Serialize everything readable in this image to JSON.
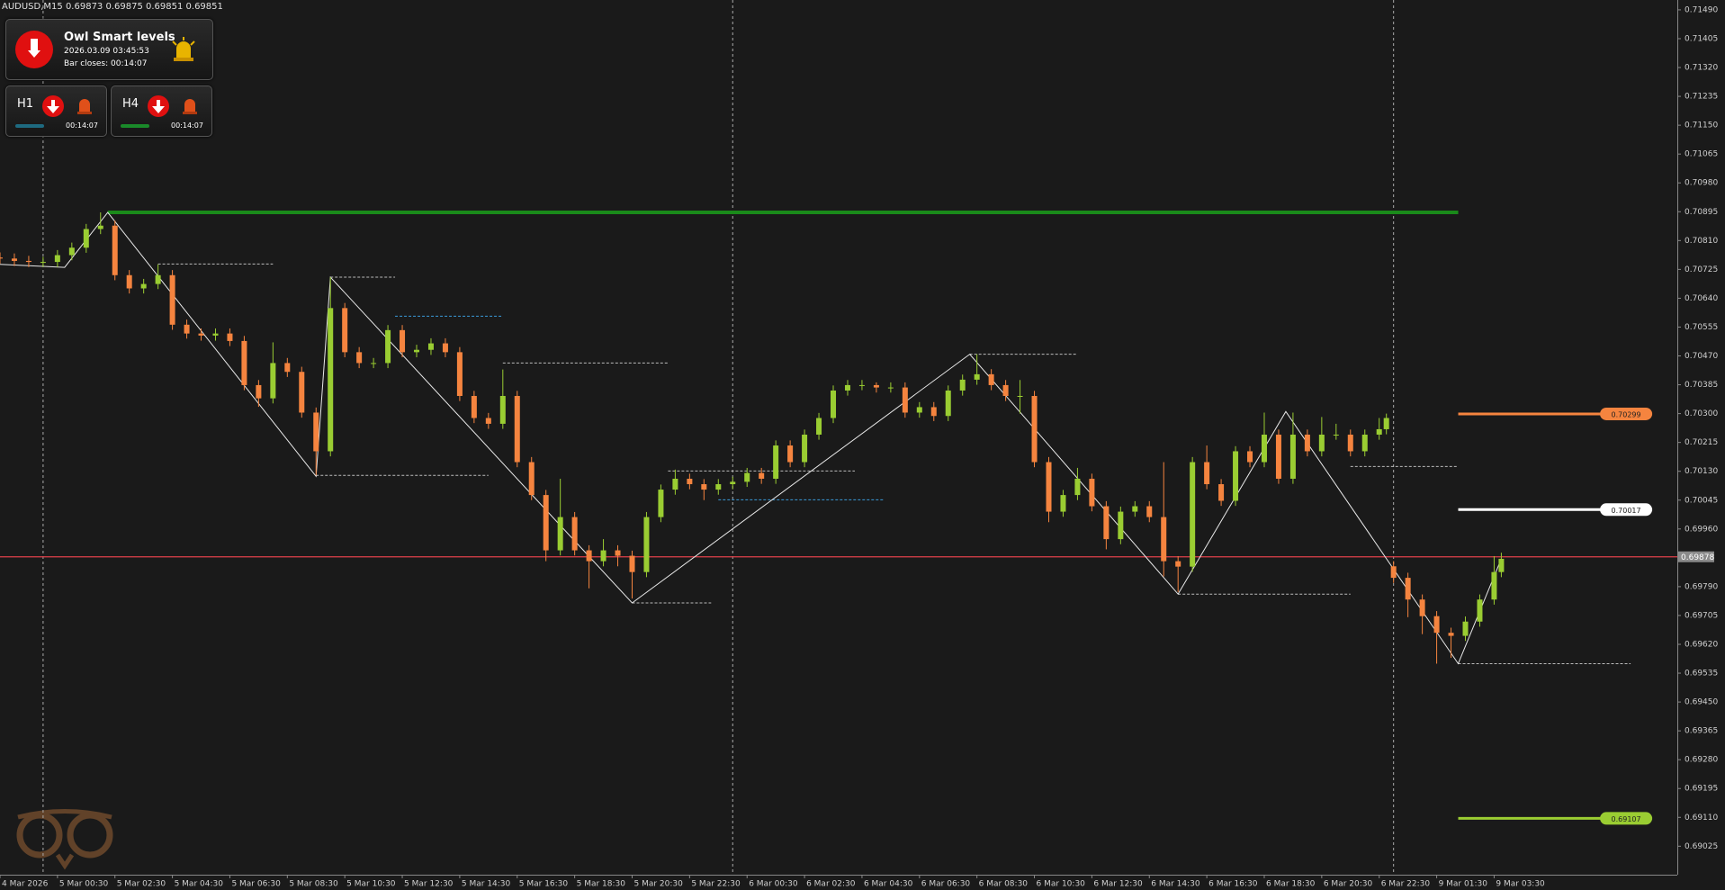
{
  "chart_data": {
    "type": "candlestick",
    "header": "AUDUSD,M15  0.69873 0.69875 0.69851 0.69851",
    "up_color": "#9acd32",
    "down_color": "#f5843f",
    "xlim": [
      0,
      233.5
    ],
    "ylim": [
      0.68941,
      0.71519
    ],
    "xticks": [
      {
        "value": 0,
        "label": "4 Mar 2026"
      },
      {
        "value": 8,
        "label": "5 Mar 00:30"
      },
      {
        "value": 16,
        "label": "5 Mar 02:30"
      },
      {
        "value": 24,
        "label": "5 Mar 04:30"
      },
      {
        "value": 32,
        "label": "5 Mar 06:30"
      },
      {
        "value": 40,
        "label": "5 Mar 08:30"
      },
      {
        "value": 48,
        "label": "5 Mar 10:30"
      },
      {
        "value": 56,
        "label": "5 Mar 12:30"
      },
      {
        "value": 64,
        "label": "5 Mar 14:30"
      },
      {
        "value": 72,
        "label": "5 Mar 16:30"
      },
      {
        "value": 80,
        "label": "5 Mar 18:30"
      },
      {
        "value": 88,
        "label": "5 Mar 20:30"
      },
      {
        "value": 96,
        "label": "5 Mar 22:30"
      },
      {
        "value": 104,
        "label": "6 Mar 00:30"
      },
      {
        "value": 112,
        "label": "6 Mar 02:30"
      },
      {
        "value": 120,
        "label": "6 Mar 04:30"
      },
      {
        "value": 128,
        "label": "6 Mar 06:30"
      },
      {
        "value": 136,
        "label": "6 Mar 08:30"
      },
      {
        "value": 144,
        "label": "6 Mar 10:30"
      },
      {
        "value": 152,
        "label": "6 Mar 12:30"
      },
      {
        "value": 160,
        "label": "6 Mar 14:30"
      },
      {
        "value": 168,
        "label": "6 Mar 16:30"
      },
      {
        "value": 176,
        "label": "6 Mar 18:30"
      },
      {
        "value": 184,
        "label": "6 Mar 20:30"
      },
      {
        "value": 192,
        "label": "6 Mar 22:30"
      },
      {
        "value": 200,
        "label": "9 Mar 01:30"
      },
      {
        "value": 208,
        "label": "9 Mar 03:30"
      }
    ],
    "yticks": [
      {
        "value": 0.7149,
        "label": "0.71490"
      },
      0.71405,
      {
        "value": 0.7132,
        "label": "0.71320"
      },
      0.71235,
      {
        "value": 0.7115,
        "label": "0.71150"
      },
      0.71065,
      {
        "value": 0.7098,
        "label": "0.70980"
      },
      0.70895,
      {
        "value": 0.7081,
        "label": "0.70810"
      },
      0.70725,
      {
        "value": 0.7064,
        "label": "0.70640"
      },
      0.70555,
      {
        "value": 0.7047,
        "label": "0.70470"
      },
      0.70385,
      {
        "value": 0.703,
        "label": "0.70300"
      },
      0.70215,
      {
        "value": 0.7013,
        "label": "0.70130"
      },
      0.70045,
      {
        "value": 0.6996,
        "label": "0.69960"
      },
      {
        "value": 0.6979,
        "label": "0.69790"
      },
      0.69705,
      {
        "value": 0.6962,
        "label": "0.69620"
      },
      0.69535,
      {
        "value": 0.6945,
        "label": "0.69450"
      },
      0.69365,
      {
        "value": 0.6928,
        "label": "0.69280"
      },
      0.69195,
      {
        "value": 0.6911,
        "label": "0.69110"
      },
      0.69025
    ],
    "x": [
      0,
      2,
      4,
      6,
      8,
      10,
      12,
      14,
      16,
      18,
      20,
      22,
      24,
      26,
      28,
      30,
      32,
      34,
      36,
      38,
      40,
      42,
      44,
      46,
      48,
      50,
      52,
      54,
      56,
      58,
      60,
      62,
      64,
      66,
      68,
      70,
      72,
      74,
      76,
      78,
      80,
      82,
      84,
      86,
      88,
      90,
      92,
      94,
      96,
      98,
      100,
      102,
      104,
      106,
      108,
      110,
      112,
      114,
      116,
      118,
      120,
      122,
      124,
      126,
      128,
      130,
      132,
      134,
      136,
      138,
      140,
      142,
      144,
      146,
      148,
      150,
      152,
      154,
      156,
      158,
      160,
      162,
      164,
      166,
      168,
      170,
      172,
      174,
      176,
      178,
      180,
      182,
      184,
      186,
      188,
      190,
      192,
      193,
      194,
      196,
      198,
      200,
      202,
      204,
      206,
      208,
      209
    ],
    "ohlc": [
      [
        0.7076,
        0.70775,
        0.70742,
        0.70757
      ],
      [
        0.70757,
        0.70772,
        0.70735,
        0.7075
      ],
      [
        0.7075,
        0.70765,
        0.70732,
        0.70747
      ],
      [
        0.70747,
        0.70762,
        0.70732,
        0.70747
      ],
      [
        0.70747,
        0.70782,
        0.70732,
        0.70767
      ],
      [
        0.70767,
        0.70804,
        0.70752,
        0.70789
      ],
      [
        0.70789,
        0.70859,
        0.70774,
        0.70844
      ],
      [
        0.70844,
        0.70893,
        0.70829,
        0.70854
      ],
      [
        0.70854,
        0.70869,
        0.70693,
        0.70708
      ],
      [
        0.70708,
        0.70723,
        0.70654,
        0.70669
      ],
      [
        0.70669,
        0.70697,
        0.70654,
        0.70682
      ],
      [
        0.70682,
        0.7074,
        0.70667,
        0.70708
      ],
      [
        0.70708,
        0.70723,
        0.70547,
        0.70562
      ],
      [
        0.70562,
        0.70577,
        0.70521,
        0.70536
      ],
      [
        0.70536,
        0.70551,
        0.70515,
        0.7053
      ],
      [
        0.7053,
        0.70551,
        0.70515,
        0.70536
      ],
      [
        0.70536,
        0.70551,
        0.70499,
        0.70514
      ],
      [
        0.70514,
        0.70529,
        0.70369,
        0.70384
      ],
      [
        0.70384,
        0.70399,
        0.7032,
        0.70345
      ],
      [
        0.70345,
        0.7051,
        0.7033,
        0.70449
      ],
      [
        0.70449,
        0.70464,
        0.70408,
        0.70423
      ],
      [
        0.70423,
        0.70438,
        0.70288,
        0.70303
      ],
      [
        0.70303,
        0.70318,
        0.70118,
        0.70189
      ],
      [
        0.70189,
        0.70702,
        0.70174,
        0.70611
      ],
      [
        0.70611,
        0.70626,
        0.70466,
        0.70481
      ],
      [
        0.70481,
        0.70496,
        0.70434,
        0.70449
      ],
      [
        0.70449,
        0.70464,
        0.70434,
        0.70449
      ],
      [
        0.70449,
        0.70561,
        0.70434,
        0.70546
      ],
      [
        0.70546,
        0.70561,
        0.70466,
        0.70481
      ],
      [
        0.70481,
        0.70503,
        0.70466,
        0.70488
      ],
      [
        0.70488,
        0.70522,
        0.70473,
        0.70507
      ],
      [
        0.70507,
        0.70522,
        0.70466,
        0.70481
      ],
      [
        0.70481,
        0.70496,
        0.70337,
        0.70352
      ],
      [
        0.70352,
        0.70367,
        0.70272,
        0.70287
      ],
      [
        0.70287,
        0.70302,
        0.70255,
        0.7027
      ],
      [
        0.7027,
        0.7043,
        0.70255,
        0.70352
      ],
      [
        0.70352,
        0.70367,
        0.70142,
        0.70157
      ],
      [
        0.70157,
        0.70172,
        0.70045,
        0.7006
      ],
      [
        0.7006,
        0.70075,
        0.69865,
        0.69897
      ],
      [
        0.69897,
        0.70108,
        0.69882,
        0.69995
      ],
      [
        0.69995,
        0.7001,
        0.69882,
        0.69897
      ],
      [
        0.69897,
        0.69912,
        0.69785,
        0.69865
      ],
      [
        0.69865,
        0.6993,
        0.6985,
        0.69897
      ],
      [
        0.69897,
        0.69912,
        0.6985,
        0.69881
      ],
      [
        0.69881,
        0.69896,
        0.69755,
        0.69833
      ],
      [
        0.69833,
        0.7001,
        0.69818,
        0.69995
      ],
      [
        0.69995,
        0.70091,
        0.6998,
        0.70076
      ],
      [
        0.70076,
        0.70135,
        0.70061,
        0.70108
      ],
      [
        0.70108,
        0.70123,
        0.70077,
        0.70092
      ],
      [
        0.70092,
        0.70107,
        0.70045,
        0.70076
      ],
      [
        0.70076,
        0.70107,
        0.70061,
        0.70092
      ],
      [
        0.70092,
        0.70114,
        0.70077,
        0.70099
      ],
      [
        0.70099,
        0.7014,
        0.70084,
        0.70125
      ],
      [
        0.70125,
        0.7014,
        0.70093,
        0.70108
      ],
      [
        0.70108,
        0.70221,
        0.70093,
        0.70206
      ],
      [
        0.70206,
        0.70221,
        0.70142,
        0.70157
      ],
      [
        0.70157,
        0.70253,
        0.70142,
        0.70238
      ],
      [
        0.70238,
        0.70302,
        0.70223,
        0.70287
      ],
      [
        0.70287,
        0.70383,
        0.70272,
        0.70368
      ],
      [
        0.70368,
        0.70399,
        0.70353,
        0.70384
      ],
      [
        0.70384,
        0.70399,
        0.70369,
        0.70384
      ],
      [
        0.70384,
        0.70392,
        0.70362,
        0.70377
      ],
      [
        0.70377,
        0.70392,
        0.70362,
        0.70377
      ],
      [
        0.70377,
        0.70392,
        0.70288,
        0.70303
      ],
      [
        0.70303,
        0.70334,
        0.70288,
        0.70319
      ],
      [
        0.70319,
        0.70334,
        0.70278,
        0.70293
      ],
      [
        0.70293,
        0.70383,
        0.70278,
        0.70368
      ],
      [
        0.70368,
        0.70415,
        0.70353,
        0.704
      ],
      [
        0.704,
        0.70475,
        0.70385,
        0.70416
      ],
      [
        0.70416,
        0.70431,
        0.70369,
        0.70384
      ],
      [
        0.70384,
        0.70399,
        0.70337,
        0.70352
      ],
      [
        0.70352,
        0.70399,
        0.703,
        0.70352
      ],
      [
        0.70352,
        0.70367,
        0.70142,
        0.70157
      ],
      [
        0.70157,
        0.70172,
        0.6998,
        0.70011
      ],
      [
        0.70011,
        0.70075,
        0.69996,
        0.7006
      ],
      [
        0.7006,
        0.7014,
        0.70045,
        0.70108
      ],
      [
        0.70108,
        0.70123,
        0.70012,
        0.70027
      ],
      [
        0.70027,
        0.70042,
        0.699,
        0.6993
      ],
      [
        0.6993,
        0.70026,
        0.69915,
        0.70011
      ],
      [
        0.70011,
        0.70042,
        0.69996,
        0.70027
      ],
      [
        0.70027,
        0.70042,
        0.6998,
        0.69995
      ],
      [
        0.69995,
        0.70157,
        0.6982,
        0.69865
      ],
      [
        0.69865,
        0.6988,
        0.69774,
        0.69849
      ],
      [
        0.69849,
        0.70172,
        0.69834,
        0.70157
      ],
      [
        0.70157,
        0.70206,
        0.70077,
        0.70092
      ],
      [
        0.70092,
        0.70107,
        0.70028,
        0.70043
      ],
      [
        0.70043,
        0.70204,
        0.70028,
        0.70189
      ],
      [
        0.70189,
        0.70204,
        0.70142,
        0.70157
      ],
      [
        0.70157,
        0.70303,
        0.70142,
        0.70238
      ],
      [
        0.70238,
        0.70253,
        0.70093,
        0.70108
      ],
      [
        0.70108,
        0.70303,
        0.70093,
        0.70238
      ],
      [
        0.70238,
        0.70253,
        0.70174,
        0.70189
      ],
      [
        0.70189,
        0.7029,
        0.70174,
        0.70238
      ],
      [
        0.70238,
        0.7027,
        0.70223,
        0.70238
      ],
      [
        0.70238,
        0.70253,
        0.70174,
        0.70189
      ],
      [
        0.70189,
        0.70253,
        0.70174,
        0.70238
      ],
      [
        0.70238,
        0.70287,
        0.70223,
        0.70254
      ],
      [
        0.70254,
        0.703,
        0.70239,
        0.70287
      ],
      [
        0.6985,
        0.69865,
        0.69801,
        0.69816
      ],
      [
        0.69816,
        0.69831,
        0.697,
        0.69752
      ],
      [
        0.69752,
        0.69767,
        0.6965,
        0.69703
      ],
      [
        0.69703,
        0.69718,
        0.69563,
        0.69654
      ],
      [
        0.69654,
        0.69669,
        0.6958,
        0.69645
      ],
      [
        0.69645,
        0.69702,
        0.6963,
        0.69687
      ],
      [
        0.69687,
        0.69767,
        0.69672,
        0.69752
      ],
      [
        0.69752,
        0.6988,
        0.69737,
        0.69833
      ],
      [
        0.69833,
        0.6989,
        0.69818,
        0.69872
      ]
    ],
    "zigzag": {
      "x": [
        0,
        9,
        15,
        44,
        46,
        88,
        135,
        164,
        179,
        203,
        209
      ],
      "values": [
        0.7074,
        0.70731,
        0.70893,
        0.70115,
        0.70702,
        0.69742,
        0.70475,
        0.69768,
        0.70306,
        0.69563,
        0.69872
      ]
    },
    "levels": [
      {
        "value": 0.70741,
        "from": 22,
        "to": 38,
        "color": "#bbbbbb"
      },
      {
        "value": 0.70702,
        "from": 46,
        "to": 55,
        "color": "#bbbbbb"
      },
      {
        "value": 0.70587,
        "from": 55,
        "to": 70,
        "color": "#3a9ad9"
      },
      {
        "value": 0.70449,
        "from": 70,
        "to": 93,
        "color": "#bbbbbb"
      },
      {
        "value": 0.70118,
        "from": 44,
        "to": 68,
        "color": "#bbbbbb"
      },
      {
        "value": 0.70131,
        "from": 93,
        "to": 119,
        "color": "#bbbbbb"
      },
      {
        "value": 0.70046,
        "from": 100,
        "to": 123,
        "color": "#3a9ad9"
      },
      {
        "value": 0.69742,
        "from": 88,
        "to": 99,
        "color": "#bbbbbb"
      },
      {
        "value": 0.70475,
        "from": 135,
        "to": 150,
        "color": "#bbbbbb"
      },
      {
        "value": 0.69768,
        "from": 164,
        "to": 188,
        "color": "#bbbbbb"
      },
      {
        "value": 0.69563,
        "from": 203,
        "to": 227,
        "color": "#bbbbbb"
      },
      {
        "value": 0.70144,
        "from": 188,
        "to": 203,
        "color": "#bbbbbb"
      }
    ],
    "resistance": {
      "value": 0.70893,
      "from": 15,
      "to": 203,
      "color": "#1a8a1a"
    },
    "smart_levels": [
      {
        "value": 0.70299,
        "from": 203,
        "to": 230,
        "color": "#f5843f"
      },
      {
        "value": 0.70017,
        "from": 203,
        "to": 230,
        "color": "#ffffff"
      },
      {
        "value": 0.69107,
        "from": 203,
        "to": 230,
        "color": "#9acd32"
      }
    ],
    "price": {
      "value": 0.69878,
      "color": "#e0404a"
    },
    "day_separators": [
      6,
      102,
      194
    ]
  },
  "indicator": {
    "title": "Owl Smart levels",
    "time": "2026.03.09 03:45:53",
    "bar_closes": "Bar closes: 00:14:07",
    "timeframes": [
      {
        "label": "H1",
        "timer": "00:14:07",
        "color": "#1e6a80"
      },
      {
        "label": "H4",
        "timer": "00:14:07",
        "color": "#1a8a2a"
      }
    ]
  }
}
